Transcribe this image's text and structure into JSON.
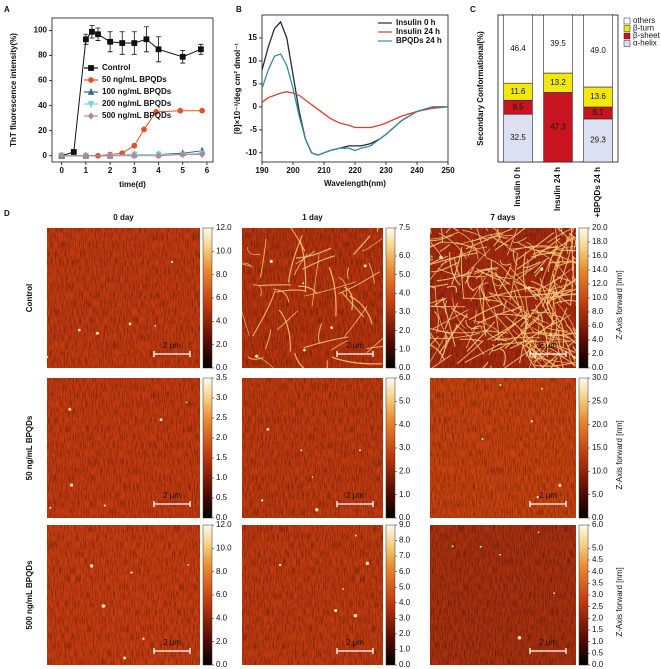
{
  "panel_labels": [
    "A",
    "B",
    "C",
    "D"
  ],
  "chart_data": [
    {
      "type": "line",
      "ylabel": "ThT fluorescence intensity(%)",
      "xlabel": "time(d)",
      "xlim": [
        -0.4,
        6.25
      ],
      "ylim": [
        -5,
        110
      ],
      "xticks": [
        0,
        1,
        2,
        3,
        4,
        5,
        6
      ],
      "yticks": [
        0,
        20,
        40,
        60,
        80,
        100
      ],
      "legend": "center left",
      "series": [
        {
          "name": "Control",
          "color": "#111111",
          "marker": "square",
          "x": [
            0,
            0.5,
            1,
            1.25,
            1.5,
            2,
            2.5,
            3,
            3.5,
            4,
            5,
            5.75
          ],
          "values": [
            0,
            3,
            93,
            99,
            97,
            91,
            90,
            90,
            93,
            85,
            79,
            85
          ],
          "errors": [
            1,
            1,
            4,
            5,
            5,
            8,
            9,
            9,
            10,
            10,
            5,
            4
          ]
        },
        {
          "name": "50 ng/mL BPQDs",
          "color": "#e8502a",
          "marker": "circle",
          "x": [
            0,
            1,
            1.5,
            2,
            2.5,
            3,
            3.4,
            3.9,
            4.9,
            5.8
          ],
          "values": [
            0,
            0,
            0,
            1,
            2,
            8,
            21,
            35,
            36,
            36
          ]
        },
        {
          "name": "100 ng/mL BPQDs",
          "color": "#2f6f7f",
          "marker": "triangle",
          "x": [
            0,
            1,
            2,
            3,
            4,
            5,
            5.8
          ],
          "values": [
            0,
            0,
            0,
            1,
            1,
            2,
            4
          ]
        },
        {
          "name": "200 ng/mL BPQDs",
          "color": "#7fcfd6",
          "marker": "triangle-down",
          "x": [
            0,
            1,
            2,
            3,
            4,
            5,
            5.8
          ],
          "values": [
            0,
            0,
            0,
            1,
            1,
            1,
            2
          ]
        },
        {
          "name": "500 ng/mL BPQDs",
          "color": "#b08898",
          "marker": "diamond",
          "x": [
            0,
            1,
            2,
            3,
            4,
            5,
            5.8
          ],
          "values": [
            0,
            0,
            0,
            0,
            0,
            1,
            1
          ]
        }
      ]
    },
    {
      "type": "line",
      "ylabel": "[θ]×10⁻³/deg cm² dmol⁻¹",
      "xlabel": "Wavelength(nm)",
      "xlim": [
        190,
        250
      ],
      "ylim": [
        -12,
        20
      ],
      "xticks": [
        190,
        200,
        210,
        220,
        230,
        240,
        250
      ],
      "yticks": [
        -10,
        -5,
        0,
        5,
        10,
        15
      ],
      "legend": "upper right",
      "x": [
        190,
        192,
        194,
        196,
        198,
        200,
        202,
        204,
        206,
        208,
        210,
        212,
        215,
        218,
        220,
        222,
        225,
        228,
        230,
        235,
        240,
        245,
        250
      ],
      "series": [
        {
          "name": "Insulin  0 h",
          "color": "#1f2a44",
          "values": [
            8,
            13,
            17,
            18.5,
            15,
            7,
            -1,
            -7,
            -10,
            -10.5,
            -10,
            -9.5,
            -9,
            -8.5,
            -8.5,
            -8.5,
            -8,
            -7,
            -6,
            -3,
            -1,
            0,
            0
          ]
        },
        {
          "name": "Insulin  24 h",
          "color": "#d9402b",
          "values": [
            1,
            2,
            2.5,
            3,
            3.3,
            3,
            2.5,
            1.5,
            0.5,
            -0.5,
            -1.5,
            -2.5,
            -3.5,
            -4,
            -4.5,
            -4.5,
            -4.5,
            -4,
            -3.5,
            -2,
            -1,
            -0.3,
            0
          ]
        },
        {
          "name": "BPQDs 24 h",
          "color": "#3a8a9e",
          "values": [
            4,
            8,
            11,
            11.5,
            9,
            4,
            -2,
            -7,
            -10,
            -10.5,
            -10,
            -9.5,
            -9,
            -9,
            -9.5,
            -9,
            -8.5,
            -7,
            -6,
            -3,
            -1,
            0,
            0
          ]
        }
      ]
    },
    {
      "type": "bar",
      "stacked": true,
      "ylabel": "Secondary Conformational(%)",
      "ylim": [
        0,
        100
      ],
      "categories": [
        "Insulin 0 h",
        "Insulin 24 h",
        "+BPQDs 24 h"
      ],
      "legend": "right",
      "series": [
        {
          "name": "α-helix",
          "color": "#dde0f2",
          "values": [
            32.5,
            null,
            29.3
          ]
        },
        {
          "name": "β-sheet",
          "color": "#c8141e",
          "values": [
            9.5,
            47.3,
            8.1
          ]
        },
        {
          "name": "β-turn",
          "color": "#f2e80a",
          "values": [
            11.6,
            13.2,
            13.6
          ]
        },
        {
          "name": "others",
          "color": "#ffffff",
          "values": [
            46.4,
            39.5,
            49.0
          ],
          "value_labels": [
            "46.4",
            "39.5",
            "49.0"
          ]
        }
      ]
    }
  ],
  "afm": {
    "column_titles": [
      "0 day",
      "1 day",
      "7 days"
    ],
    "row_titles": [
      "Control",
      "50 ng/mL BPQDs",
      "500 ng/mL BPQDs"
    ],
    "scale_bar": "2 μm",
    "colorbar_label": "Z-Axis forward [nm]",
    "images": [
      [
        {
          "zlim": [
            0,
            12
          ],
          "zticks": [
            {
              "value": 0,
              "label": "0.0"
            },
            {
              "value": 2,
              "label": "2.0"
            },
            {
              "value": 4,
              "label": "4.0"
            },
            {
              "value": 6,
              "label": "6.0"
            },
            {
              "value": 8,
              "label": "8.0"
            },
            {
              "value": 10,
              "label": "10.0"
            },
            {
              "value": 12,
              "label": "12.0"
            }
          ]
        },
        {
          "zlim": [
            0,
            7.5
          ],
          "zticks": [
            {
              "value": 0,
              "label": "0.0"
            },
            {
              "value": 1,
              "label": "1.0"
            },
            {
              "value": 2,
              "label": "2.0"
            },
            {
              "value": 3,
              "label": "3.0"
            },
            {
              "value": 4,
              "label": "4.0"
            },
            {
              "value": 5,
              "label": "5.0"
            },
            {
              "value": 6,
              "label": "6.0"
            },
            7.5
          ]
        },
        {
          "zlim": [
            0,
            20
          ],
          "zticks": [
            {
              "value": 0,
              "label": "0.0"
            },
            {
              "value": 2,
              "label": "2.0"
            },
            {
              "value": 4,
              "label": "4.0"
            },
            {
              "value": 6,
              "label": "6.0"
            },
            {
              "value": 8,
              "label": "8.0"
            },
            {
              "value": 10,
              "label": "10.0"
            },
            {
              "value": 12,
              "label": "12.0"
            },
            {
              "value": 14,
              "label": "14.0"
            },
            {
              "value": 16,
              "label": "16.0"
            },
            {
              "value": 18,
              "label": "18.0"
            },
            {
              "value": 20,
              "label": "20.0"
            }
          ]
        }
      ],
      [
        {
          "zlim": [
            0,
            3.5
          ],
          "zticks": [
            {
              "value": 0,
              "label": "0.0"
            },
            0.5,
            {
              "value": 1,
              "label": "1.0"
            },
            1.5,
            {
              "value": 2,
              "label": "2.0"
            },
            2.5,
            {
              "value": 3,
              "label": "3.0"
            },
            3.5
          ]
        },
        {
          "zlim": [
            0,
            6
          ],
          "zticks": [
            {
              "value": 0,
              "label": "0.0"
            },
            {
              "value": 1,
              "label": "1.0"
            },
            {
              "value": 2,
              "label": "2.0"
            },
            {
              "value": 3,
              "label": "3.0"
            },
            {
              "value": 4,
              "label": "4.0"
            },
            {
              "value": 5,
              "label": "5.0"
            },
            {
              "value": 6,
              "label": "6.0"
            }
          ]
        },
        {
          "zlim": [
            0,
            30
          ],
          "zticks": [
            {
              "value": 0,
              "label": "0.0"
            },
            {
              "value": 5,
              "label": "5.0"
            },
            {
              "value": 10,
              "label": "10.0"
            },
            {
              "value": 15,
              "label": "15.0"
            },
            {
              "value": 20,
              "label": "20.0"
            },
            {
              "value": 25,
              "label": "25.0"
            },
            {
              "value": 30,
              "label": "30.0"
            }
          ]
        }
      ],
      [
        {
          "zlim": [
            0,
            12
          ],
          "zticks": [
            {
              "value": 0,
              "label": "0.0"
            },
            {
              "value": 2,
              "label": "2.0"
            },
            {
              "value": 4,
              "label": "4.0"
            },
            {
              "value": 6,
              "label": "6.0"
            },
            {
              "value": 8,
              "label": "8.0"
            },
            {
              "value": 10,
              "label": "10.0"
            },
            {
              "value": 12,
              "label": "12.0"
            }
          ]
        },
        {
          "zlim": [
            0,
            9
          ],
          "zticks": [
            {
              "value": 0,
              "label": "0.0"
            },
            {
              "value": 1,
              "label": "1.0"
            },
            {
              "value": 2,
              "label": "2.0"
            },
            {
              "value": 3,
              "label": "3.0"
            },
            {
              "value": 4,
              "label": "4.0"
            },
            {
              "value": 5,
              "label": "5.0"
            },
            {
              "value": 6,
              "label": "6.0"
            },
            {
              "value": 7,
              "label": "7.0"
            },
            {
              "value": 8,
              "label": "8.0"
            },
            {
              "value": 9,
              "label": "9.0"
            }
          ]
        },
        {
          "zlim": [
            0,
            6
          ],
          "zticks": [
            {
              "value": 0,
              "label": "0.0"
            },
            0.5,
            {
              "value": 1,
              "label": "1.0"
            },
            1.5,
            {
              "value": 2,
              "label": "2.0"
            },
            2.5,
            {
              "value": 3,
              "label": "3.0"
            },
            3.5,
            {
              "value": 4,
              "label": "4.0"
            },
            4.5,
            {
              "value": 5,
              "label": "5.0"
            },
            {
              "value": 6,
              "label": "6.0"
            }
          ]
        }
      ]
    ]
  }
}
